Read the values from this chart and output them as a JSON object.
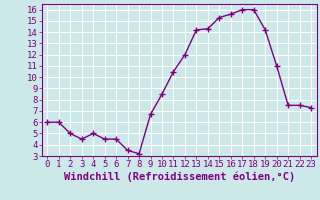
{
  "x": [
    0,
    1,
    2,
    3,
    4,
    5,
    6,
    7,
    8,
    9,
    10,
    11,
    12,
    13,
    14,
    15,
    16,
    17,
    18,
    19,
    20,
    21,
    22,
    23
  ],
  "y": [
    6.0,
    6.0,
    5.0,
    4.5,
    5.0,
    4.5,
    4.5,
    3.5,
    3.2,
    6.7,
    8.5,
    10.5,
    12.0,
    14.2,
    14.3,
    15.3,
    15.6,
    16.0,
    16.0,
    14.2,
    11.0,
    7.5,
    7.5,
    7.3
  ],
  "line_color": "#800080",
  "marker": "+",
  "marker_color": "#800080",
  "bg_color": "#cce8e8",
  "grid_color": "#ffffff",
  "xlabel": "Windchill (Refroidissement éolien,°C)",
  "ylabel": "",
  "xlim": [
    -0.5,
    23.5
  ],
  "ylim": [
    3,
    16.5
  ],
  "yticks": [
    3,
    4,
    5,
    6,
    7,
    8,
    9,
    10,
    11,
    12,
    13,
    14,
    15,
    16
  ],
  "xticks": [
    0,
    1,
    2,
    3,
    4,
    5,
    6,
    7,
    8,
    9,
    10,
    11,
    12,
    13,
    14,
    15,
    16,
    17,
    18,
    19,
    20,
    21,
    22,
    23
  ],
  "tick_color": "#800080",
  "label_color": "#800080",
  "font_size": 6.5,
  "label_font_size": 7.5,
  "line_width": 1.0,
  "marker_size": 4
}
